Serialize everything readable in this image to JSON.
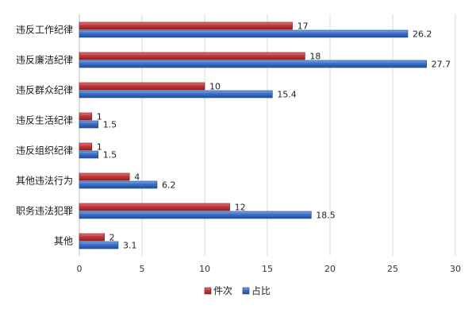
{
  "chart_data": {
    "type": "bar",
    "orientation": "horizontal",
    "categories": [
      "违反工作纪律",
      "违反廉洁纪律",
      "违反群众纪律",
      "违反生活纪律",
      "违反组织纪律",
      "其他违法行为",
      "职务违法犯罪",
      "其他"
    ],
    "series": [
      {
        "name": "件次",
        "color": "#c0383b",
        "values": [
          17,
          18,
          10,
          1,
          1,
          4,
          12,
          2
        ]
      },
      {
        "name": "占比",
        "color": "#3a6fc4",
        "values": [
          26.2,
          27.7,
          15.4,
          1.5,
          1.5,
          6.2,
          18.5,
          3.1
        ]
      }
    ],
    "xlim": [
      0,
      30
    ],
    "xticks": [
      0,
      5,
      10,
      15,
      20,
      25,
      30
    ],
    "grid": true,
    "legend_position": "bottom",
    "data_labels": true,
    "title": "",
    "xlabel": "",
    "ylabel": ""
  }
}
